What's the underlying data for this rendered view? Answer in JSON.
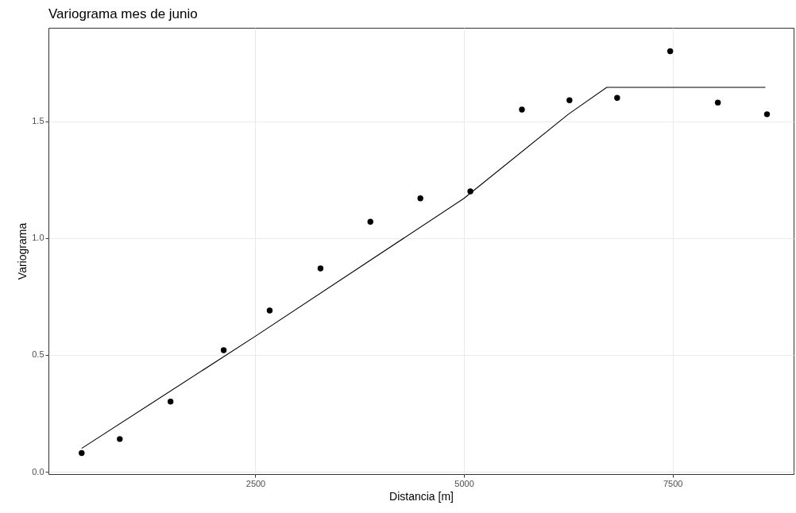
{
  "chart_data": {
    "type": "scatter",
    "title": "Variograma mes de junio",
    "xlabel": "Distancia [m]",
    "ylabel": "Variograma",
    "xlim": [
      20,
      8950
    ],
    "ylim": [
      -0.01,
      1.9
    ],
    "xticks": [
      2500,
      5000,
      7500
    ],
    "yticks": [
      {
        "value": 0,
        "label": "0.0"
      },
      {
        "value": 0.5,
        "label": "0.5"
      },
      {
        "value": 1,
        "label": "1.0"
      },
      {
        "value": 1.5,
        "label": "1.5"
      }
    ],
    "grid": true,
    "series": [
      {
        "marker": "circle",
        "color": "#000000",
        "x": [
          418,
          875,
          1483,
          2120,
          2671,
          3280,
          3878,
          4477,
          5076,
          5694,
          6264,
          6835,
          7471,
          8042,
          8631
        ],
        "values": [
          0.08,
          0.14,
          0.3,
          0.52,
          0.69,
          0.87,
          1.07,
          1.17,
          1.2,
          1.55,
          1.59,
          1.6,
          1.8,
          1.58,
          1.53
        ]
      },
      {
        "type": "line",
        "color": "#000000",
        "line_style": "solid",
        "x": [
          418,
          2500,
          5000,
          6250,
          6711,
          8612
        ],
        "values": [
          0.1,
          0.58,
          1.17,
          1.53,
          1.645,
          1.645
        ]
      }
    ]
  }
}
